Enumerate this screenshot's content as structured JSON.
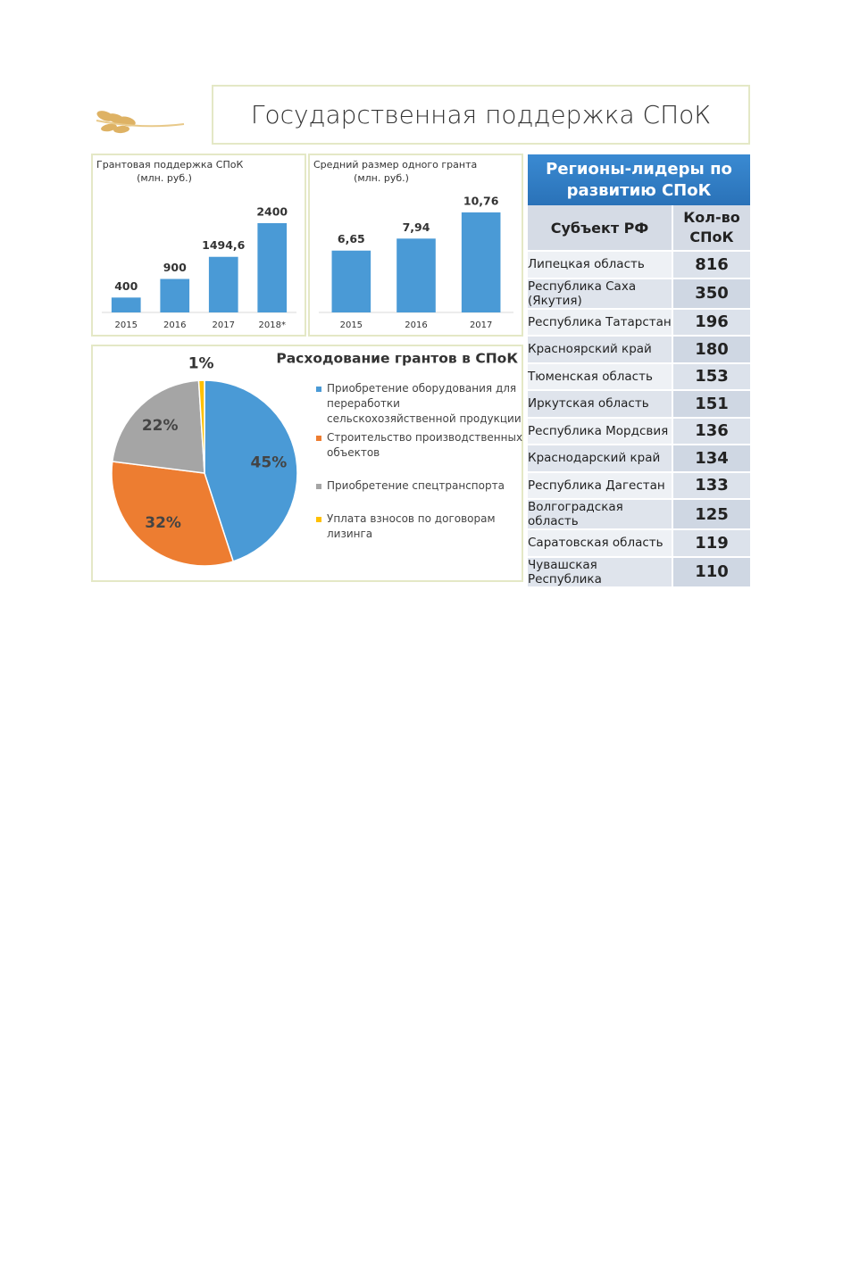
{
  "title": "Государственная поддержка СПоК",
  "chart_data": [
    {
      "type": "bar",
      "title": "Грантовая поддержка СПоК",
      "subtitle": "(млн. руб.)",
      "categories": [
        "2015",
        "2016",
        "2017",
        "2018*"
      ],
      "values": [
        400,
        900,
        1494.6,
        2400
      ],
      "value_labels": [
        "400",
        "900",
        "1494,6",
        "2400"
      ],
      "color": "#4a9ad6",
      "ylim": [
        0,
        3000
      ]
    },
    {
      "type": "bar",
      "title": "Средний размер одного гранта",
      "subtitle": "(млн. руб.)",
      "categories": [
        "2015",
        "2016",
        "2017"
      ],
      "values": [
        6.65,
        7.94,
        10.76
      ],
      "value_labels": [
        "6,65",
        "7,94",
        "10,76"
      ],
      "color": "#4a9ad6",
      "ylim": [
        0,
        12
      ]
    },
    {
      "type": "pie",
      "title": "Расходование грантов в СПоК",
      "categories": [
        "Приобретение оборудования для переработки сельскохозяйственной продукции",
        "Строительство производственных объектов",
        "Приобретение спецтранспорта",
        "Уплата взносов по договорам лизинга"
      ],
      "values": [
        45,
        32,
        22,
        1
      ],
      "value_labels": [
        "45%",
        "32%",
        "22%",
        "1%"
      ],
      "colors": [
        "#4a9ad6",
        "#ed7d31",
        "#a5a5a5",
        "#ffc000"
      ]
    }
  ],
  "table": {
    "title": "Регионы-лидеры по развитию СПоК",
    "header": [
      "Субъект РФ",
      "Кол-во СПоК"
    ],
    "rows": [
      [
        "Липецкая область",
        "816"
      ],
      [
        "Республика Саха (Якутия)",
        "350"
      ],
      [
        "Республика Татарстан",
        "196"
      ],
      [
        "Красноярский край",
        "180"
      ],
      [
        "Тюменская область",
        "153"
      ],
      [
        "Иркутская область",
        "151"
      ],
      [
        "Республика Мордсвия",
        "136"
      ],
      [
        "Краснодарский край",
        "134"
      ],
      [
        "Республика Дагестан",
        "133"
      ],
      [
        "Волгоградская область",
        "125"
      ],
      [
        "Саратовская область",
        "119"
      ],
      [
        "Чувашская Республика",
        "110"
      ]
    ]
  }
}
